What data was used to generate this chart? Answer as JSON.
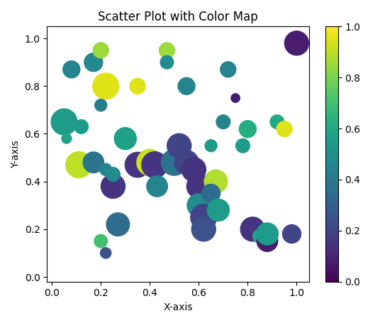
{
  "title": "Scatter Plot with Color Map",
  "xlabel": "X-axis",
  "ylabel": "Y-axis",
  "cmap": "viridis",
  "random_seed": 0,
  "n_points": 50,
  "xlim": [
    -0.02,
    1.05
  ],
  "ylim": [
    -0.02,
    1.05
  ],
  "size_scale": 1000,
  "figsize": [
    5.43,
    4.55
  ],
  "dpi": 100,
  "points": {
    "x": [
      0.08,
      0.17,
      0.05,
      0.12,
      0.06,
      0.11,
      0.2,
      0.22,
      0.2,
      0.17,
      0.22,
      0.25,
      0.27,
      0.35,
      0.2,
      0.22,
      0.3,
      0.35,
      0.25,
      0.4,
      0.42,
      0.43,
      0.47,
      0.47,
      0.5,
      0.52,
      0.55,
      0.55,
      0.58,
      0.6,
      0.6,
      0.62,
      0.62,
      0.65,
      0.67,
      0.65,
      0.68,
      0.7,
      0.72,
      0.75,
      0.78,
      0.8,
      0.82,
      0.85,
      0.88,
      0.92,
      0.95,
      0.98,
      1.0,
      0.88
    ],
    "y": [
      0.87,
      0.9,
      0.65,
      0.63,
      0.58,
      0.47,
      0.95,
      0.8,
      0.72,
      0.48,
      0.45,
      0.38,
      0.22,
      0.8,
      0.15,
      0.1,
      0.58,
      0.47,
      0.43,
      0.48,
      0.47,
      0.38,
      0.95,
      0.9,
      0.48,
      0.55,
      0.8,
      0.48,
      0.45,
      0.38,
      0.3,
      0.25,
      0.2,
      0.55,
      0.4,
      0.35,
      0.28,
      0.65,
      0.87,
      0.75,
      0.55,
      0.62,
      0.2,
      0.17,
      0.15,
      0.65,
      0.62,
      0.18,
      0.98,
      0.18
    ],
    "colors": [
      0.45,
      0.47,
      0.55,
      0.55,
      0.58,
      0.9,
      0.85,
      0.95,
      0.42,
      0.38,
      0.45,
      0.15,
      0.35,
      0.95,
      0.7,
      0.25,
      0.57,
      0.15,
      0.48,
      0.92,
      0.15,
      0.45,
      0.85,
      0.48,
      0.38,
      0.2,
      0.45,
      0.2,
      0.15,
      0.15,
      0.48,
      0.2,
      0.25,
      0.55,
      0.88,
      0.35,
      0.55,
      0.45,
      0.45,
      0.08,
      0.55,
      0.62,
      0.15,
      0.6,
      0.08,
      0.6,
      0.95,
      0.2,
      0.08,
      0.55
    ],
    "sizes": [
      300,
      350,
      700,
      200,
      100,
      700,
      250,
      700,
      150,
      450,
      150,
      600,
      550,
      250,
      180,
      120,
      500,
      650,
      200,
      700,
      700,
      450,
      250,
      180,
      700,
      600,
      300,
      600,
      600,
      600,
      550,
      700,
      600,
      150,
      550,
      350,
      500,
      200,
      250,
      80,
      200,
      300,
      600,
      200,
      450,
      200,
      250,
      350,
      600,
      500
    ]
  }
}
